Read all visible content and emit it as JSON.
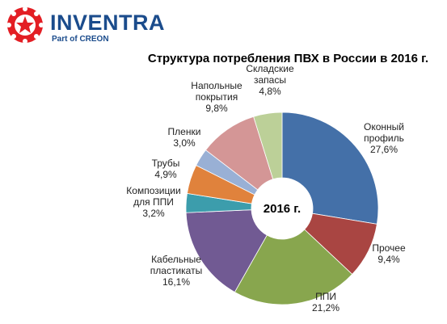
{
  "brand": {
    "name": "INVENTRA",
    "subtitle": "Part of CREON",
    "colors": {
      "primary": "#1b4c8c",
      "accent": "#e31e24"
    }
  },
  "chart_data": {
    "type": "pie",
    "title": "Структура потребления ПВХ в России в 2016 г.",
    "center_label": "2016 г.",
    "donut": true,
    "slices": [
      {
        "lines": [
          "Оконный",
          "профиль"
        ],
        "value": 27.6,
        "value_label": "27,6%",
        "color": "#4470a8"
      },
      {
        "lines": [
          "Прочее"
        ],
        "value": 9.4,
        "value_label": "9,4%",
        "color": "#a94542"
      },
      {
        "lines": [
          "ППИ"
        ],
        "value": 21.2,
        "value_label": "21,2%",
        "color": "#88a64e"
      },
      {
        "lines": [
          "Кабельные",
          "пластикаты"
        ],
        "value": 16.1,
        "value_label": "16,1%",
        "color": "#715a93"
      },
      {
        "lines": [
          "Композиции",
          "для ППИ"
        ],
        "value": 3.2,
        "value_label": "3,2%",
        "color": "#3c9dac"
      },
      {
        "lines": [
          "Трубы"
        ],
        "value": 4.9,
        "value_label": "4,9%",
        "color": "#e0823c"
      },
      {
        "lines": [
          "Пленки"
        ],
        "value": 3.0,
        "value_label": "3,0%",
        "color": "#99b0d5"
      },
      {
        "lines": [
          "Напольные",
          "покрытия"
        ],
        "value": 9.8,
        "value_label": "9,8%",
        "color": "#d49696"
      },
      {
        "lines": [
          "Складские",
          "запасы"
        ],
        "value": 4.8,
        "value_label": "4,8%",
        "color": "#bcd098"
      }
    ]
  }
}
